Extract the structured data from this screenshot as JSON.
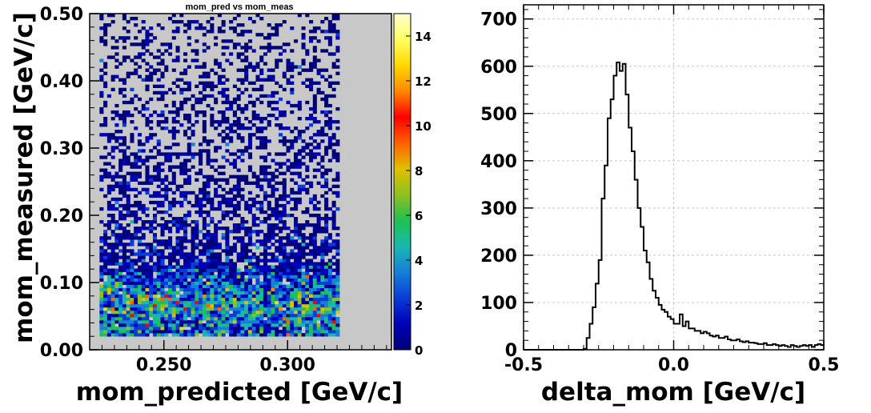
{
  "chart_data": [
    {
      "type": "heatmap",
      "title": "mom_pred vs mom_meas",
      "xlabel": "mom_predicted [GeV/c]",
      "ylabel": "mom_measured [GeV/c]",
      "xlim": [
        0.22,
        0.342
      ],
      "ylim": [
        0.0,
        0.5
      ],
      "xticks": [
        0.25,
        0.3
      ],
      "xtick_labels": [
        "0.250",
        "0.300"
      ],
      "yticks": [
        0.0,
        0.1,
        0.2,
        0.3,
        0.4,
        0.5
      ],
      "ytick_labels": [
        "0.00",
        "0.10",
        "0.20",
        "0.30",
        "0.40",
        "0.50"
      ],
      "data_region": {
        "x": [
          0.224,
          0.321
        ],
        "y": [
          0.02,
          0.5
        ]
      },
      "bins": {
        "x": 63,
        "y": 100
      },
      "density_profile": {
        "y_centers": [
          0.025,
          0.05,
          0.075,
          0.1,
          0.125,
          0.15,
          0.2,
          0.3,
          0.4,
          0.5
        ],
        "mean_counts": [
          3.5,
          4.2,
          4.8,
          3.2,
          1.8,
          1.1,
          0.8,
          0.55,
          0.4,
          0.3
        ]
      },
      "background_color": "#c8c8c8",
      "colorbar": {
        "min": 0,
        "max": 15,
        "ticks": [
          0,
          2,
          4,
          6,
          8,
          10,
          12,
          14
        ],
        "tick_labels": [
          "0",
          "2",
          "4",
          "6",
          "8",
          "10",
          "12",
          "14"
        ],
        "colors": [
          "#00007a",
          "#0000b8",
          "#0a3cd8",
          "#1680d8",
          "#18b8b0",
          "#20c050",
          "#90c020",
          "#e0c000",
          "#ff6000",
          "#ff0000",
          "#ff8800",
          "#ffd800",
          "#ffff60",
          "#ffffd0"
        ]
      },
      "grid": false
    },
    {
      "type": "histogram",
      "title": "",
      "xlabel": "delta_mom [GeV/c]",
      "ylabel": "",
      "xlim": [
        -0.5,
        0.5
      ],
      "ylim": [
        0,
        730
      ],
      "xticks": [
        -0.5,
        0.0,
        0.5
      ],
      "xtick_labels": [
        "-0.5",
        "0.0",
        "0.5"
      ],
      "yticks": [
        0,
        100,
        200,
        300,
        400,
        500,
        600,
        700
      ],
      "ytick_labels": [
        "0",
        "100",
        "200",
        "300",
        "400",
        "500",
        "600",
        "700"
      ],
      "grid": true,
      "bin_width": 0.01,
      "bin_start": -0.5,
      "values": [
        0,
        0,
        0,
        0,
        0,
        0,
        0,
        0,
        0,
        0,
        0,
        0,
        0,
        0,
        0,
        0,
        0,
        0,
        0,
        0,
        2,
        25,
        55,
        90,
        140,
        190,
        320,
        390,
        490,
        530,
        580,
        608,
        590,
        605,
        540,
        470,
        420,
        360,
        300,
        260,
        210,
        185,
        150,
        125,
        110,
        95,
        85,
        80,
        70,
        65,
        55,
        55,
        75,
        50,
        60,
        45,
        45,
        40,
        40,
        35,
        38,
        35,
        30,
        28,
        30,
        25,
        25,
        28,
        22,
        20,
        20,
        22,
        18,
        16,
        18,
        15,
        15,
        14,
        12,
        12,
        14,
        10,
        10,
        12,
        10,
        8,
        10,
        8,
        6,
        10,
        8,
        6,
        8,
        10,
        8,
        10,
        6,
        10,
        12,
        10
      ]
    }
  ]
}
